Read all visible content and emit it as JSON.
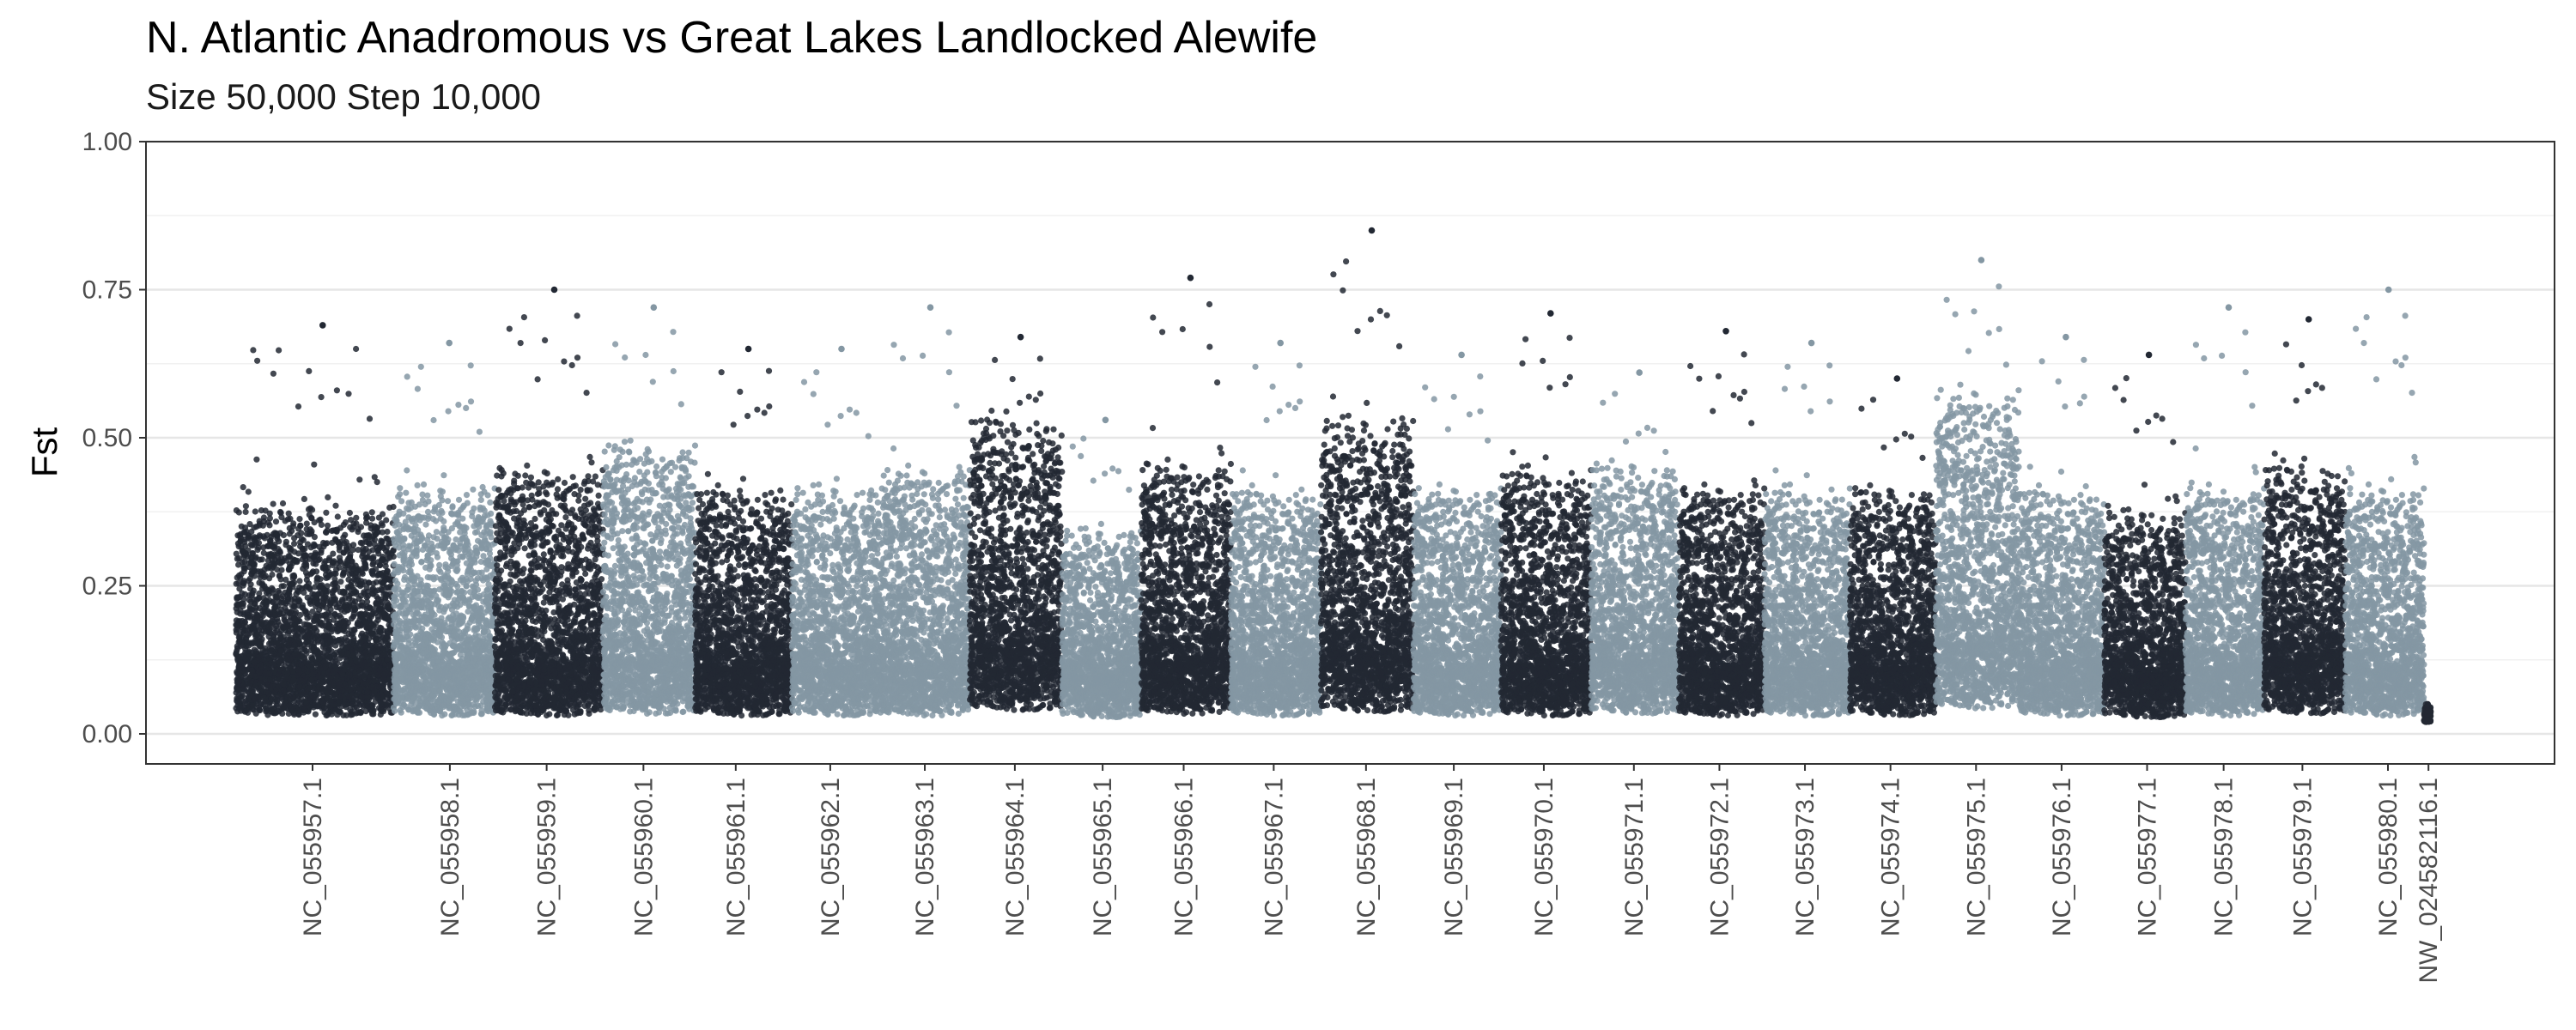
{
  "chart_data": {
    "type": "scatter",
    "title": "N. Atlantic Anadromous vs Great Lakes Landlocked Alewife",
    "subtitle": "Size 50,000 Step 10,000",
    "xlabel": "",
    "ylabel": "Fst",
    "ylim": [
      -0.05,
      1.0
    ],
    "y_ticks": [
      {
        "value": 0.0,
        "label": "0.00"
      },
      {
        "value": 0.25,
        "label": "0.25"
      },
      {
        "value": 0.5,
        "label": "0.50"
      },
      {
        "value": 0.75,
        "label": "0.75"
      },
      {
        "value": 1.0,
        "label": "1.00"
      }
    ],
    "grid": true,
    "colors": {
      "dark": "#222833",
      "light": "#8497a3"
    },
    "chromosomes": [
      {
        "label": "NC_055957.1",
        "start": 0.0,
        "end": 3.5,
        "tick": 1.7,
        "color": "dark",
        "base": 0.1,
        "spread": 0.18,
        "max": 0.69
      },
      {
        "label": "NC_055958.1",
        "start": 3.5,
        "end": 5.75,
        "tick": 4.75,
        "color": "light",
        "base": 0.1,
        "spread": 0.2,
        "max": 0.66
      },
      {
        "label": "NC_055959.1",
        "start": 5.75,
        "end": 8.15,
        "tick": 6.9,
        "color": "dark",
        "base": 0.1,
        "spread": 0.22,
        "max": 0.75
      },
      {
        "label": "NC_055960.1",
        "start": 8.15,
        "end": 10.2,
        "tick": 9.05,
        "color": "light",
        "base": 0.11,
        "spread": 0.24,
        "max": 0.72
      },
      {
        "label": "NC_055961.1",
        "start": 10.2,
        "end": 12.35,
        "tick": 11.1,
        "color": "dark",
        "base": 0.1,
        "spread": 0.2,
        "max": 0.65
      },
      {
        "label": "NC_055962.1",
        "start": 12.35,
        "end": 14.35,
        "tick": 13.2,
        "color": "light",
        "base": 0.1,
        "spread": 0.2,
        "max": 0.65
      },
      {
        "label": "NC_055963.1",
        "start": 14.35,
        "end": 16.3,
        "tick": 15.3,
        "color": "light",
        "base": 0.1,
        "spread": 0.22,
        "max": 0.72
      },
      {
        "label": "NC_055964.1",
        "start": 16.3,
        "end": 18.35,
        "tick": 17.3,
        "color": "dark",
        "base": 0.13,
        "spread": 0.26,
        "max": 0.67
      },
      {
        "label": "NC_055965.1",
        "start": 18.35,
        "end": 20.1,
        "tick": 19.25,
        "color": "light",
        "base": 0.09,
        "spread": 0.16,
        "max": 0.53
      },
      {
        "label": "NC_055966.1",
        "start": 20.1,
        "end": 22.1,
        "tick": 21.05,
        "color": "dark",
        "base": 0.11,
        "spread": 0.22,
        "max": 0.77
      },
      {
        "label": "NC_055967.1",
        "start": 22.1,
        "end": 24.1,
        "tick": 23.05,
        "color": "light",
        "base": 0.1,
        "spread": 0.2,
        "max": 0.66
      },
      {
        "label": "NC_055968.1",
        "start": 24.1,
        "end": 26.15,
        "tick": 25.1,
        "color": "dark",
        "base": 0.12,
        "spread": 0.26,
        "max": 0.85
      },
      {
        "label": "NC_055969.1",
        "start": 26.15,
        "end": 28.1,
        "tick": 27.05,
        "color": "light",
        "base": 0.1,
        "spread": 0.2,
        "max": 0.64
      },
      {
        "label": "NC_055970.1",
        "start": 28.1,
        "end": 30.1,
        "tick": 29.05,
        "color": "dark",
        "base": 0.1,
        "spread": 0.22,
        "max": 0.71
      },
      {
        "label": "NC_055971.1",
        "start": 30.1,
        "end": 32.05,
        "tick": 31.05,
        "color": "light",
        "base": 0.11,
        "spread": 0.22,
        "max": 0.61
      },
      {
        "label": "NC_055972.1",
        "start": 32.05,
        "end": 33.95,
        "tick": 32.95,
        "color": "dark",
        "base": 0.1,
        "spread": 0.2,
        "max": 0.68
      },
      {
        "label": "NC_055973.1",
        "start": 33.95,
        "end": 35.85,
        "tick": 34.85,
        "color": "light",
        "base": 0.1,
        "spread": 0.2,
        "max": 0.66
      },
      {
        "label": "NC_055974.1",
        "start": 35.85,
        "end": 37.75,
        "tick": 36.75,
        "color": "dark",
        "base": 0.1,
        "spread": 0.2,
        "max": 0.6
      },
      {
        "label": "NC_055975.1",
        "start": 37.75,
        "end": 39.6,
        "tick": 38.65,
        "color": "light",
        "base": 0.14,
        "spread": 0.28,
        "max": 0.8
      },
      {
        "label": "NC_055976.1",
        "start": 39.6,
        "end": 41.5,
        "tick": 40.55,
        "color": "light",
        "base": 0.1,
        "spread": 0.2,
        "max": 0.67
      },
      {
        "label": "NC_055977.1",
        "start": 41.5,
        "end": 43.3,
        "tick": 42.45,
        "color": "dark",
        "base": 0.09,
        "spread": 0.18,
        "max": 0.64
      },
      {
        "label": "NC_055978.1",
        "start": 43.3,
        "end": 45.05,
        "tick": 44.15,
        "color": "light",
        "base": 0.1,
        "spread": 0.2,
        "max": 0.72
      },
      {
        "label": "NC_055979.1",
        "start": 45.05,
        "end": 46.85,
        "tick": 45.9,
        "color": "dark",
        "base": 0.11,
        "spread": 0.22,
        "max": 0.7
      },
      {
        "label": "NC_055980.1",
        "start": 46.85,
        "end": 48.6,
        "tick": 47.8,
        "color": "light",
        "base": 0.1,
        "spread": 0.2,
        "max": 0.75
      },
      {
        "label": "NW_024582116.1",
        "start": 48.6,
        "end": 48.75,
        "tick": 48.7,
        "color": "dark",
        "base": 0.02,
        "spread": 0.02,
        "max": 0.05
      }
    ],
    "x_range": [
      -2.0,
      51.5
    ]
  }
}
